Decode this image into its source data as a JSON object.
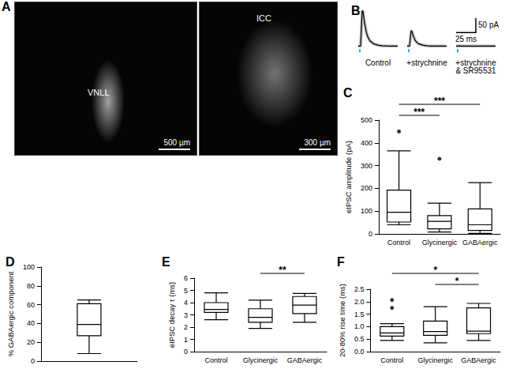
{
  "images": {
    "title": "A",
    "panels": [
      {
        "labels": [
          "VNLL"
        ],
        "scale_bar": "500 µm"
      },
      {
        "labels": [
          "ICC"
        ],
        "scale_bar": "300 µm"
      }
    ]
  },
  "chart_data": [
    {
      "type": "line",
      "title": "B",
      "color": "#000000",
      "x": [
        0,
        2,
        3,
        4,
        5,
        6,
        8,
        10,
        12,
        15,
        20,
        25,
        30,
        40,
        50
      ],
      "series": [
        {
          "name": "Control",
          "color": "#000000",
          "values": [
            0,
            0,
            0,
            60,
            120,
            118,
            80,
            50,
            32,
            17,
            7,
            3,
            1,
            0,
            0
          ]
        },
        {
          "name": "+strychnine",
          "color": "#000000",
          "values": [
            0,
            0,
            0,
            25,
            52,
            50,
            33,
            20,
            13,
            7,
            3,
            1,
            0,
            0,
            0
          ]
        },
        {
          "name": "+strychnine\n& SR95531",
          "color": "#000000",
          "values": [
            0,
            0,
            0,
            1,
            0,
            0,
            0,
            0,
            0,
            0,
            0,
            0,
            0,
            0,
            0
          ]
        }
      ],
      "xlim": [
        0,
        50
      ],
      "ylim": [
        -10,
        130
      ],
      "tick_labels": false,
      "stimulus": {
        "x": [
          1,
          3
        ],
        "color": "#29abe2"
      },
      "scale_bar": {
        "x": 25,
        "x_label": "25 ms",
        "y": 50,
        "y_label": "50 pA"
      }
    },
    {
      "type": "boxplot",
      "title": "C",
      "y_label": "eIPSC amplitude (pA)",
      "color": "#000000",
      "grid": false,
      "categories": [
        "Control",
        "Glycinergic",
        "GABAergic"
      ],
      "boxes": [
        {
          "min": 40,
          "q1": 52,
          "median": 95,
          "q3": 192,
          "max": 365
        },
        {
          "min": 8,
          "q1": 22,
          "median": 55,
          "q3": 80,
          "max": 135
        },
        {
          "min": 2,
          "q1": 15,
          "median": 40,
          "q3": 110,
          "max": 225
        }
      ],
      "outliers": [
        [
          450
        ],
        [
          330
        ],
        []
      ],
      "ylim": [
        0,
        500
      ],
      "yticks": [
        0,
        100,
        200,
        300,
        400,
        500
      ],
      "annotations": [
        {
          "from": "Control",
          "to": "Glycinergic",
          "label": "***"
        },
        {
          "from": "Control",
          "to": "GABAergic",
          "label": "***"
        }
      ]
    },
    {
      "type": "boxplot",
      "title": "D",
      "y_label": "% GABAergic component",
      "color": "#000000",
      "grid": false,
      "categories": [
        null
      ],
      "boxes": [
        {
          "min": 8,
          "q1": 27,
          "median": 39,
          "q3": 61,
          "max": 65
        }
      ],
      "outliers": [
        []
      ],
      "ylim": [
        0,
        100
      ],
      "yticks": [
        0,
        20,
        40,
        60,
        80,
        100
      ],
      "annotations": []
    },
    {
      "type": "boxplot",
      "title": "E",
      "y_label": "eIPSC decay τ (ms)",
      "color": "#000000",
      "grid": false,
      "categories": [
        "Control",
        "Glycinergic",
        "GABAergic"
      ],
      "boxes": [
        {
          "min": 2.6,
          "q1": 3.2,
          "median": 3.45,
          "q3": 4.0,
          "max": 4.8
        },
        {
          "min": 1.9,
          "q1": 2.4,
          "median": 2.8,
          "q3": 3.5,
          "max": 4.2
        },
        {
          "min": 2.4,
          "q1": 3.1,
          "median": 3.8,
          "q3": 4.5,
          "max": 4.75
        }
      ],
      "outliers": [
        [],
        [],
        []
      ],
      "ylim": [
        0,
        6
      ],
      "yticks": [
        0,
        1,
        2,
        3,
        4,
        5,
        6
      ],
      "annotations": [
        {
          "from": "Glycinergic",
          "to": "GABAergic",
          "label": "**"
        }
      ]
    },
    {
      "type": "boxplot",
      "title": "F",
      "y_label": "20-80% rise time (ms)",
      "color": "#000000",
      "grid": false,
      "categories": [
        "Control",
        "Glycinergic",
        "GABAergic"
      ],
      "boxes": [
        {
          "min": 0.45,
          "q1": 0.62,
          "median": 0.75,
          "q3": 1.0,
          "max": 1.12
        },
        {
          "min": 0.35,
          "q1": 0.65,
          "median": 0.8,
          "q3": 1.22,
          "max": 1.8
        },
        {
          "min": 0.45,
          "q1": 0.72,
          "median": 0.82,
          "q3": 1.75,
          "max": 1.93
        }
      ],
      "outliers": [
        [
          1.75,
          2.07
        ],
        [],
        []
      ],
      "ylim": [
        0,
        2.5
      ],
      "yticks": [
        {
          "value": 0,
          "label": "0.0"
        },
        {
          "value": 0.5,
          "label": "0.5"
        },
        {
          "value": 1,
          "label": "1.0"
        },
        {
          "value": 1.5,
          "label": "1.5"
        },
        {
          "value": 2,
          "label": "2.0"
        },
        {
          "value": 2.5,
          "label": "2.5"
        }
      ],
      "annotations": [
        {
          "from": "Glycinergic",
          "to": "GABAergic",
          "label": "*"
        },
        {
          "from": "Control",
          "to": "GABAergic",
          "label": "*"
        }
      ]
    }
  ]
}
